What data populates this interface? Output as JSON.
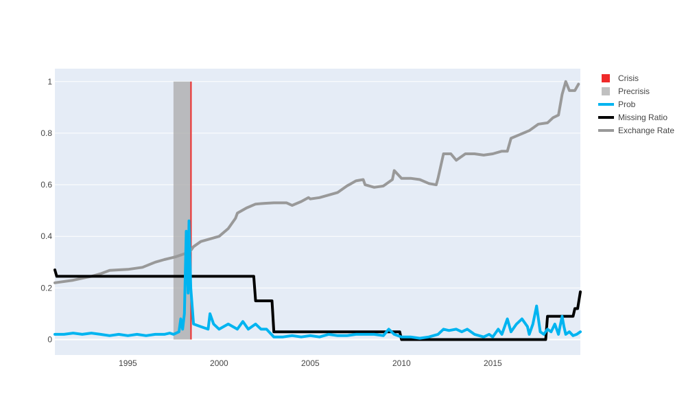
{
  "chart_data": {
    "type": "line",
    "xlim": [
      1991.0,
      2019.8
    ],
    "ylim": [
      -0.06,
      1.05
    ],
    "x_ticks": [
      1995,
      2000,
      2005,
      2010,
      2015
    ],
    "x_tick_labels": [
      "1995",
      "2000",
      "2005",
      "2010",
      "2015"
    ],
    "y_ticks": [
      0,
      0.2,
      0.4,
      0.6,
      0.8,
      1
    ],
    "y_tick_labels": [
      "0",
      "0.2",
      "0.4",
      "0.6",
      "0.8",
      "1"
    ],
    "grid": true,
    "legend_position": "right",
    "plot_background": "#e5ecf6",
    "gridline_color": "#ffffff",
    "bands": [
      {
        "name": "Precrisis",
        "color": "#aaaaaa",
        "x0": 1997.5,
        "x1": 1998.5,
        "y0": 0,
        "y1": 1
      },
      {
        "name": "Crisis",
        "color": "#ef2a2a",
        "x0": 1998.42,
        "x1": 1998.5,
        "y0": 0,
        "y1": 1
      }
    ],
    "series": [
      {
        "name": "Exchange Rate",
        "color": "#999999",
        "x": [
          1991.0,
          1992.0,
          1993.0,
          1993.5,
          1994.0,
          1995.0,
          1995.8,
          1996.5,
          1997.0,
          1997.6,
          1998.0,
          1998.4,
          1998.6,
          1999.0,
          1999.5,
          2000.0,
          2000.5,
          2000.9,
          2001.0,
          2001.5,
          2002.0,
          2002.5,
          2003.0,
          2003.7,
          2004.0,
          2004.5,
          2004.9,
          2005.0,
          2005.5,
          2006.0,
          2006.5,
          2007.0,
          2007.5,
          2007.9,
          2008.0,
          2008.5,
          2009.0,
          2009.5,
          2009.6,
          2010.0,
          2010.5,
          2011.0,
          2011.5,
          2011.9,
          2012.0,
          2012.3,
          2012.7,
          2013.0,
          2013.5,
          2014.0,
          2014.5,
          2015.0,
          2015.5,
          2015.8,
          2016.0,
          2016.5,
          2017.0,
          2017.5,
          2018.0,
          2018.3,
          2018.6,
          2018.8,
          2019.0,
          2019.2,
          2019.5,
          2019.7
        ],
        "y": [
          0.22,
          0.23,
          0.245,
          0.255,
          0.268,
          0.272,
          0.28,
          0.3,
          0.31,
          0.32,
          0.33,
          0.34,
          0.36,
          0.38,
          0.39,
          0.4,
          0.43,
          0.47,
          0.49,
          0.51,
          0.525,
          0.528,
          0.53,
          0.53,
          0.52,
          0.535,
          0.55,
          0.545,
          0.55,
          0.56,
          0.57,
          0.595,
          0.615,
          0.62,
          0.6,
          0.59,
          0.595,
          0.62,
          0.655,
          0.625,
          0.625,
          0.62,
          0.605,
          0.6,
          0.625,
          0.72,
          0.72,
          0.695,
          0.72,
          0.72,
          0.715,
          0.72,
          0.73,
          0.73,
          0.78,
          0.795,
          0.81,
          0.835,
          0.84,
          0.86,
          0.87,
          0.95,
          1.0,
          0.965,
          0.965,
          0.99
        ]
      },
      {
        "name": "Missing Ratio",
        "color": "#000000",
        "x": [
          1991.0,
          1991.1,
          2001.9,
          2002.0,
          2002.9,
          2003.0,
          2009.9,
          2010.0,
          2017.9,
          2018.0,
          2019.4,
          2019.5,
          2019.65,
          2019.8
        ],
        "y": [
          0.27,
          0.245,
          0.245,
          0.15,
          0.15,
          0.03,
          0.03,
          0.0,
          0.0,
          0.09,
          0.09,
          0.12,
          0.12,
          0.185
        ]
      },
      {
        "name": "Prob",
        "color": "#00b4f0",
        "x": [
          1991.0,
          1991.5,
          1992.0,
          1992.5,
          1993.0,
          1993.5,
          1994.0,
          1994.5,
          1995.0,
          1995.5,
          1996.0,
          1996.5,
          1997.0,
          1997.3,
          1997.5,
          1997.8,
          1997.9,
          1998.0,
          1998.1,
          1998.2,
          1998.3,
          1998.35,
          1998.45,
          1998.6,
          1999.0,
          1999.4,
          1999.5,
          1999.7,
          2000.0,
          2000.5,
          2001.0,
          2001.3,
          2001.6,
          2002.0,
          2002.3,
          2002.6,
          2003.0,
          2003.5,
          2004.0,
          2004.5,
          2005.0,
          2005.5,
          2006.0,
          2006.5,
          2007.0,
          2007.5,
          2008.0,
          2008.5,
          2009.0,
          2009.3,
          2009.6,
          2010.0,
          2010.5,
          2011.0,
          2011.5,
          2012.0,
          2012.3,
          2012.6,
          2013.0,
          2013.3,
          2013.6,
          2014.0,
          2014.5,
          2014.8,
          2015.0,
          2015.3,
          2015.5,
          2015.8,
          2016.0,
          2016.3,
          2016.6,
          2016.9,
          2017.0,
          2017.2,
          2017.4,
          2017.6,
          2017.8,
          2018.0,
          2018.2,
          2018.4,
          2018.6,
          2018.8,
          2018.9,
          2019.0,
          2019.2,
          2019.4,
          2019.6,
          2019.8
        ],
        "y": [
          0.02,
          0.02,
          0.025,
          0.02,
          0.025,
          0.02,
          0.015,
          0.02,
          0.015,
          0.02,
          0.015,
          0.02,
          0.02,
          0.025,
          0.02,
          0.03,
          0.08,
          0.04,
          0.1,
          0.42,
          0.18,
          0.46,
          0.2,
          0.06,
          0.05,
          0.04,
          0.1,
          0.06,
          0.04,
          0.06,
          0.04,
          0.07,
          0.04,
          0.06,
          0.04,
          0.04,
          0.01,
          0.01,
          0.015,
          0.01,
          0.015,
          0.01,
          0.02,
          0.015,
          0.015,
          0.02,
          0.02,
          0.02,
          0.015,
          0.04,
          0.02,
          0.01,
          0.01,
          0.005,
          0.01,
          0.02,
          0.04,
          0.035,
          0.04,
          0.03,
          0.04,
          0.02,
          0.01,
          0.02,
          0.01,
          0.04,
          0.02,
          0.08,
          0.03,
          0.06,
          0.08,
          0.05,
          0.02,
          0.06,
          0.13,
          0.03,
          0.02,
          0.04,
          0.03,
          0.06,
          0.02,
          0.09,
          0.05,
          0.02,
          0.03,
          0.015,
          0.02,
          0.03
        ]
      }
    ],
    "legend": [
      {
        "label": "Crisis",
        "kind": "box",
        "color": "#ef2a2a"
      },
      {
        "label": "Precrisis",
        "kind": "box",
        "color": "#c0c0c0"
      },
      {
        "label": "Prob",
        "kind": "line",
        "color": "#00b4f0"
      },
      {
        "label": "Missing Ratio",
        "kind": "line",
        "color": "#000000"
      },
      {
        "label": "Exchange Rate",
        "kind": "line",
        "color": "#999999"
      }
    ]
  }
}
